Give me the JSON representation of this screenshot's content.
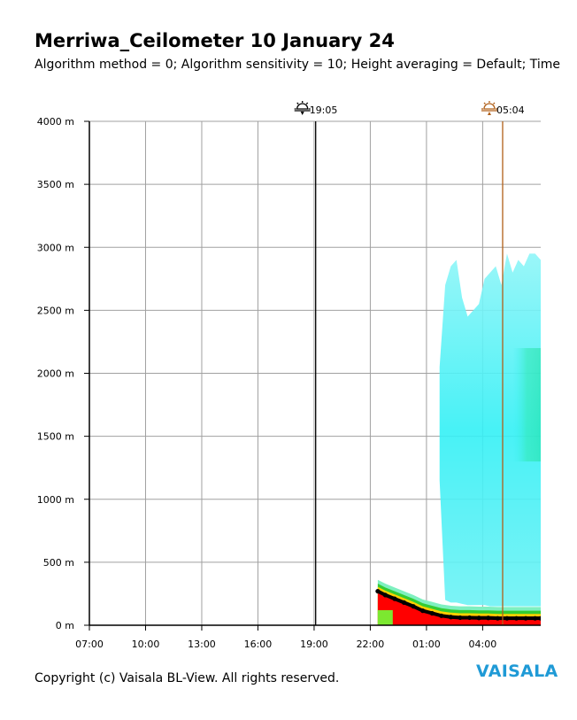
{
  "title": "Merriwa_Ceilometer 10 January 24",
  "subtitle": "Algorithm method = 0; Algorithm sensitivity = 10; Height averaging = Default; Time",
  "copyright": "Copyright (c) Vaisala BL-View. All rights reserved.",
  "logo": "VAISALA",
  "colors": {
    "grid": "#a0a0a0",
    "axis": "#000000",
    "sunset_marker": "#000000",
    "sunrise_marker": "#b0601a",
    "backscatter_low": "#00ffff",
    "backscatter_mid": "#33cc33",
    "backscatter_high": "#ff0000",
    "boundary_layer": "#000000"
  },
  "chart_data": {
    "type": "heatmap",
    "ylabel_unit": "m",
    "ylim": [
      0,
      4000
    ],
    "yticks": [
      "0 m",
      "500 m",
      "1000 m",
      "1500 m",
      "2000 m",
      "2500 m",
      "3000 m",
      "3500 m",
      "4000 m"
    ],
    "ytick_values": [
      0,
      500,
      1000,
      1500,
      2000,
      2500,
      3000,
      3500,
      4000
    ],
    "xlim_hours": [
      7.0,
      31.1
    ],
    "xticks": [
      "07:00",
      "10:00",
      "13:00",
      "16:00",
      "19:00",
      "22:00",
      "01:00",
      "04:00"
    ],
    "xtick_hours": [
      7,
      10,
      13,
      16,
      19,
      22,
      25,
      28
    ],
    "grid": true,
    "markers": [
      {
        "label": "19:05",
        "kind": "sunset",
        "hour": 19.083
      },
      {
        "label": "05:04",
        "kind": "sunrise",
        "hour": 29.067
      }
    ],
    "data_start_hour": 22.4,
    "boundary_layer_height": {
      "hours": [
        22.4,
        22.8,
        23.3,
        23.8,
        24.3,
        24.8,
        25.3,
        25.8,
        26.3,
        26.8,
        27.3,
        27.8,
        28.3,
        28.8,
        29.3,
        29.8,
        30.3,
        30.8,
        31.1
      ],
      "heights": [
        270,
        240,
        210,
        180,
        150,
        115,
        95,
        75,
        65,
        60,
        60,
        58,
        58,
        55,
        55,
        55,
        55,
        55,
        55
      ]
    },
    "cloud_top_height": {
      "hours": [
        25.7,
        26.0,
        26.3,
        26.6,
        26.9,
        27.2,
        27.5,
        27.8,
        28.1,
        28.4,
        28.7,
        29.0,
        29.3,
        29.6,
        29.9,
        30.2,
        30.5,
        30.8,
        31.1
      ],
      "heights": [
        2050,
        2700,
        2850,
        2900,
        2600,
        2450,
        2500,
        2550,
        2750,
        2800,
        2850,
        2700,
        2950,
        2800,
        2900,
        2850,
        2950,
        2950,
        2900
      ]
    },
    "cloud_base_height": {
      "hours": [
        25.7,
        26.0,
        26.3,
        26.6,
        26.9,
        27.2,
        27.5,
        27.8,
        28.1,
        28.4,
        28.7,
        29.0,
        29.3,
        29.6,
        29.9,
        30.2,
        30.5,
        30.8,
        31.1
      ],
      "heights": [
        1150,
        200,
        180,
        180,
        170,
        160,
        160,
        160,
        160,
        150,
        150,
        150,
        150,
        150,
        150,
        150,
        150,
        150,
        150
      ]
    }
  }
}
